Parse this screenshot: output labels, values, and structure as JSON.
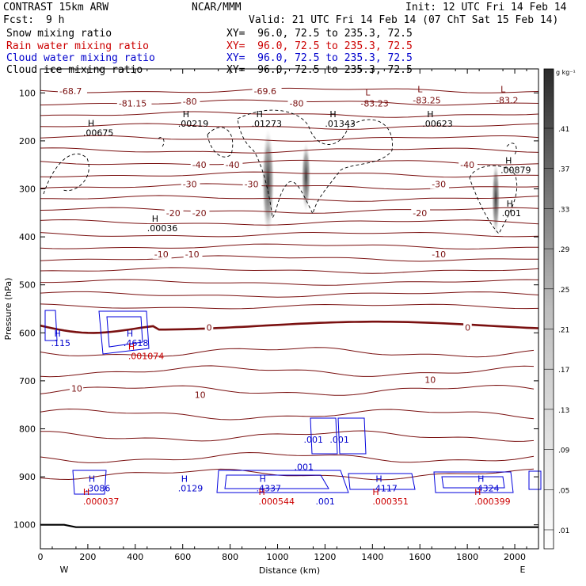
{
  "header": {
    "title": "CONTRAST 15km ARW",
    "center": "NCAR/MMM",
    "init": "Init: 12 UTC Fri 14 Feb 14",
    "fcst_label": "Fcst:",
    "fcst_value": "9 h",
    "valid": "Valid: 21 UTC Fri 14 Feb 14 (07 ChT Sat 15 Feb 14)"
  },
  "fields": [
    {
      "name": "Snow mixing ratio",
      "xy": "XY=  96.0, 72.5 to 235.3, 72.5",
      "color": "#000000"
    },
    {
      "name": "Rain water mixing ratio",
      "xy": "XY=  96.0, 72.5 to 235.3, 72.5",
      "color": "#cc0000"
    },
    {
      "name": "Cloud water mixing ratio",
      "xy": "XY=  96.0, 72.5 to 235.3, 72.5",
      "color": "#0000cc"
    },
    {
      "name": "Cloud ice mixing ratio",
      "xy": "XY=  96.0, 72.5 to 235.3, 72.5",
      "color": "#000000"
    }
  ],
  "colorbar": {
    "unit": "g kg⁻¹",
    "ticks": [
      ".41",
      ".37",
      ".33",
      ".29",
      ".25",
      ".21",
      ".17",
      ".13",
      ".09",
      ".05",
      ".01"
    ]
  },
  "chart_data": {
    "type": "contour",
    "xlabel": "Distance (km)",
    "ylabel": "Pressure (hPa)",
    "xlim": [
      0,
      2100
    ],
    "ylim": [
      1050,
      50
    ],
    "x_ticks": [
      0,
      200,
      400,
      600,
      800,
      1000,
      1200,
      1400,
      1600,
      1800,
      2000
    ],
    "y_ticks": [
      100,
      200,
      300,
      400,
      500,
      600,
      700,
      800,
      900,
      1000
    ],
    "left_end_label": "W",
    "right_end_label": "E",
    "temperature_isotherms": [
      {
        "label": "-68.7",
        "x": 80,
        "p": 96
      },
      {
        "label": "-69.6",
        "x": 900,
        "p": 96
      },
      {
        "label": "-81.15",
        "x": 330,
        "p": 122
      },
      {
        "label": "-80",
        "x": 600,
        "p": 118
      },
      {
        "label": "-80",
        "x": 1050,
        "p": 122
      },
      {
        "label": "-40",
        "x": 640,
        "p": 250
      },
      {
        "label": "-40",
        "x": 780,
        "p": 250
      },
      {
        "label": "-40",
        "x": 1770,
        "p": 250
      },
      {
        "label": "-30",
        "x": 600,
        "p": 290
      },
      {
        "label": "-30",
        "x": 860,
        "p": 290
      },
      {
        "label": "-30",
        "x": 1650,
        "p": 290
      },
      {
        "label": "-20",
        "x": 530,
        "p": 350
      },
      {
        "label": "-20",
        "x": 640,
        "p": 350
      },
      {
        "label": "-20",
        "x": 1570,
        "p": 350
      },
      {
        "label": "-10",
        "x": 480,
        "p": 436
      },
      {
        "label": "-10",
        "x": 610,
        "p": 436
      },
      {
        "label": "-10",
        "x": 1650,
        "p": 436
      },
      {
        "label": "0",
        "x": 700,
        "p": 589
      },
      {
        "label": "0",
        "x": 1790,
        "p": 589
      },
      {
        "label": "10",
        "x": 130,
        "p": 716
      },
      {
        "label": "10",
        "x": 650,
        "p": 729
      },
      {
        "label": "10",
        "x": 1620,
        "p": 698
      }
    ],
    "cloud_ice_maxima": [
      {
        "label": ".00675",
        "x": 180,
        "p": 183
      },
      {
        "label": ".00219",
        "x": 580,
        "p": 164
      },
      {
        "label": ".01273",
        "x": 890,
        "p": 164
      },
      {
        "label": ".01343",
        "x": 1200,
        "p": 164
      },
      {
        "label": ".00623",
        "x": 1610,
        "p": 164
      },
      {
        "label": ".00879",
        "x": 1940,
        "p": 260
      },
      {
        "label": ".001",
        "x": 1945,
        "p": 350
      },
      {
        "label": ".00036",
        "x": 450,
        "p": 382
      }
    ],
    "pressure_minima": [
      {
        "label": "-83.23",
        "x": 1350,
        "p": 122
      },
      {
        "label": "-83.25",
        "x": 1570,
        "p": 115
      },
      {
        "label": "-83.2",
        "x": 1920,
        "p": 115
      }
    ],
    "cloud_water_maxima": [
      {
        "label": ".115",
        "x": 45,
        "p": 621
      },
      {
        "label": ".4618",
        "x": 350,
        "p": 621
      },
      {
        "label": ".001",
        "x": 1110,
        "p": 822
      },
      {
        "label": ".001",
        "x": 1220,
        "p": 822
      },
      {
        "label": ".3086",
        "x": 190,
        "p": 924
      },
      {
        "label": ".0129",
        "x": 580,
        "p": 924
      },
      {
        "label": ".4337",
        "x": 910,
        "p": 924
      },
      {
        "label": ".4117",
        "x": 1400,
        "p": 924
      },
      {
        "label": ".4324",
        "x": 1830,
        "p": 924
      },
      {
        "label": ".001",
        "x": 1070,
        "p": 879
      },
      {
        "label": ".001",
        "x": 1160,
        "p": 951
      }
    ],
    "rain_water_maxima": [
      {
        "label": ".001074",
        "x": 370,
        "p": 648
      },
      {
        "label": ".000037",
        "x": 180,
        "p": 951
      },
      {
        "label": ".000544",
        "x": 920,
        "p": 951
      },
      {
        "label": ".000351",
        "x": 1400,
        "p": 951
      },
      {
        "label": ".000399",
        "x": 1830,
        "p": 951
      }
    ],
    "snow_shading": [
      {
        "x": 960,
        "p_top": 170,
        "p_bottom": 400,
        "max": 0.41
      },
      {
        "x": 1120,
        "p_top": 200,
        "p_bottom": 350,
        "max": 0.21
      },
      {
        "x": 1920,
        "p_top": 240,
        "p_bottom": 400,
        "max": 0.13
      }
    ],
    "freezing_level_hPa": 590,
    "surface_pressure_hPa": 1005
  }
}
